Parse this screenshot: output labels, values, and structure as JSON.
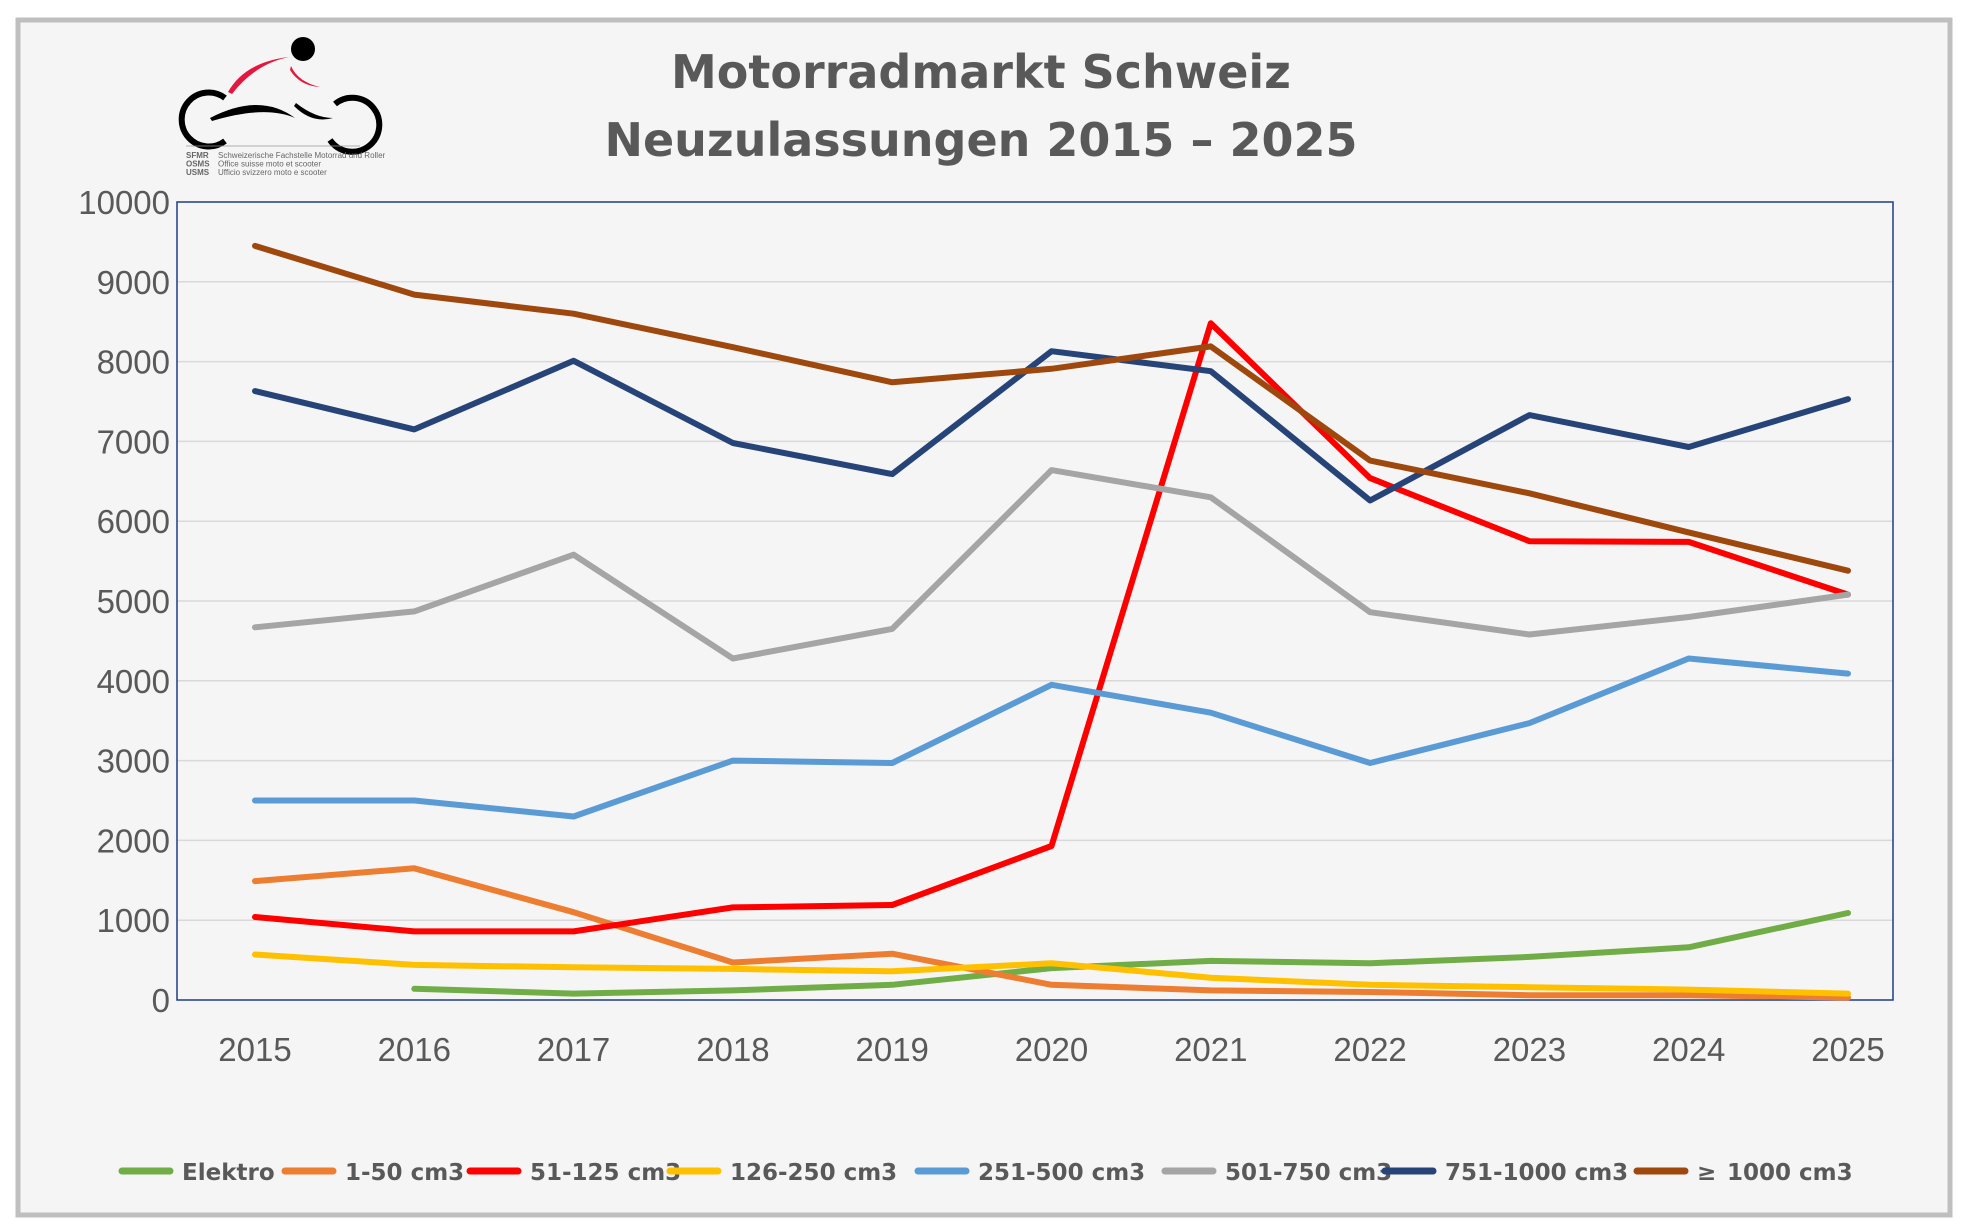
{
  "chart_data": {
    "type": "line",
    "title": [
      "Motorradmarkt Schweiz",
      "Neuzulassungen 2015 – 2025"
    ],
    "xlabel": "",
    "ylabel": "",
    "ylim": [
      0,
      10000
    ],
    "yticks": [
      "0",
      "1000",
      "2000",
      "3000",
      "4000",
      "5000",
      "6000",
      "7000",
      "8000",
      "9000",
      "10000"
    ],
    "grid": true,
    "legend": "bottom",
    "categories": [
      "2015",
      "2016",
      "2017",
      "2018",
      "2019",
      "2020",
      "2021",
      "2022",
      "2023",
      "2024",
      "2025"
    ],
    "series": [
      {
        "name": "Elektro",
        "color": "#70ad47",
        "values": [
          null,
          140,
          80,
          120,
          190,
          400,
          490,
          460,
          540,
          660,
          1090
        ]
      },
      {
        "name": "1-50 cm3",
        "color": "#ed7d31",
        "values": [
          1490,
          1650,
          1100,
          470,
          580,
          190,
          120,
          100,
          60,
          60,
          30
        ]
      },
      {
        "name": "51-125 cm3",
        "color": "#ff0000",
        "values": [
          1040,
          860,
          860,
          1160,
          1190,
          1930,
          8480,
          6540,
          5750,
          5740,
          5080
        ]
      },
      {
        "name": "126-250 cm3",
        "color": "#ffc000",
        "values": [
          570,
          440,
          410,
          390,
          360,
          460,
          280,
          190,
          160,
          130,
          80
        ]
      },
      {
        "name": "251-500 cm3",
        "color": "#5b9bd5",
        "values": [
          2500,
          2500,
          2300,
          3000,
          2970,
          3950,
          3600,
          2970,
          3470,
          4280,
          4090
        ]
      },
      {
        "name": "501-750 cm3",
        "color": "#a5a5a5",
        "values": [
          4670,
          4870,
          5580,
          4280,
          4650,
          6640,
          6300,
          4860,
          4580,
          4800,
          5080
        ]
      },
      {
        "name": "751-1000 cm3",
        "color": "#264478",
        "values": [
          7630,
          7150,
          8010,
          6980,
          6590,
          8130,
          7880,
          6260,
          7330,
          6930,
          7530
        ]
      },
      {
        "name": "1000 cm3",
        "prefix_symbol": "≥",
        "color": "#9e480e",
        "values": [
          9450,
          8840,
          8600,
          8180,
          7740,
          7910,
          8190,
          6760,
          6350,
          5860,
          5380
        ]
      }
    ]
  },
  "logo": {
    "lines": [
      {
        "abbr": "SFMR",
        "text": "Schweizerische Fachstelle Motorrad und Roller"
      },
      {
        "abbr": "OSMS",
        "text": "Office suisse moto et scooter"
      },
      {
        "abbr": "USMS",
        "text": "Ufficio svizzero moto e scooter"
      }
    ]
  }
}
